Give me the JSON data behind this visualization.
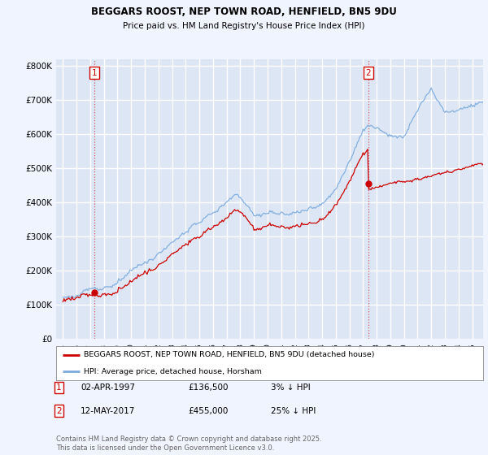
{
  "title_line1": "BEGGARS ROOST, NEP TOWN ROAD, HENFIELD, BN5 9DU",
  "title_line2": "Price paid vs. HM Land Registry's House Price Index (HPI)",
  "background_color": "#f0f4ff",
  "plot_bg_color": "#dde6f5",
  "grid_color": "#ffffff",
  "sale1_date": 1997.28,
  "sale1_price": 136500,
  "sale1_label": "1",
  "sale2_date": 2017.37,
  "sale2_price": 455000,
  "sale2_label": "2",
  "legend_label_red": "BEGGARS ROOST, NEP TOWN ROAD, HENFIELD, BN5 9DU (detached house)",
  "legend_label_blue": "HPI: Average price, detached house, Horsham",
  "footer": "Contains HM Land Registry data © Crown copyright and database right 2025.\nThis data is licensed under the Open Government Licence v3.0.",
  "ylim": [
    0,
    820000
  ],
  "xlim_start": 1994.5,
  "xlim_end": 2025.8,
  "red_color": "#cc0000",
  "blue_color": "#7aaadd",
  "sale1_hpi_ratio": 0.97,
  "sale2_hpi_ratio": 0.75
}
